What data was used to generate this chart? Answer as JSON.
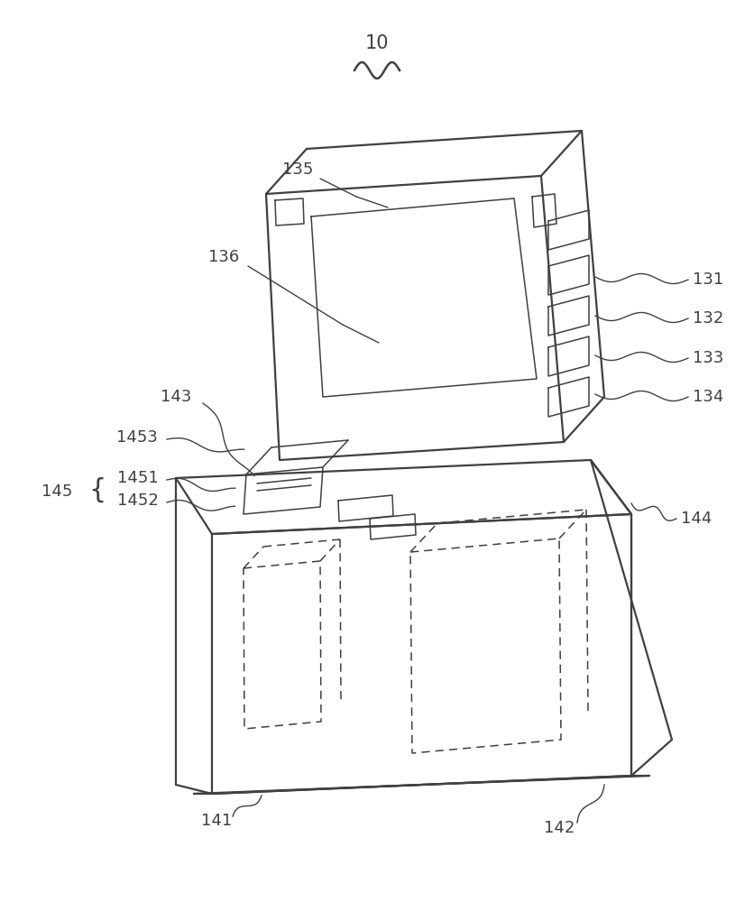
{
  "bg_color": "#ffffff",
  "lc": "#404040",
  "lw_main": 1.6,
  "lw_thin": 1.1,
  "lw_label": 1.0,
  "figsize": [
    8.37,
    10.0
  ],
  "dpi": 100
}
